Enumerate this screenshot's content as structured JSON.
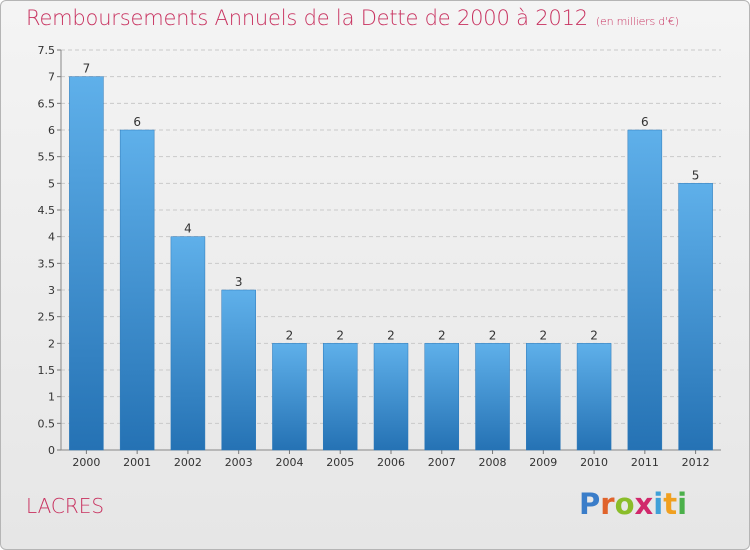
{
  "title": "Remboursements Annuels de la Dette de 2000 à 2012",
  "subtitle": "(en milliers d'€)",
  "commune": "LACRES",
  "logo": {
    "text": "Proxiti",
    "letter_colors": [
      "#3a7dc9",
      "#e0632b",
      "#8abd2a",
      "#d1286b",
      "#3fa0d8",
      "#f0a020",
      "#4bb04a"
    ]
  },
  "colors": {
    "title": "#c8315f",
    "bar_top": "#5fb0ea",
    "bar_bottom": "#2572b4",
    "grid": "#c9c9c9",
    "axis_text": "#333333"
  },
  "chart_data": {
    "type": "bar",
    "title": "Remboursements Annuels de la Dette de 2000 à 2012",
    "subtitle": "(en milliers d'€)",
    "categories": [
      "2000",
      "2001",
      "2002",
      "2003",
      "2004",
      "2005",
      "2006",
      "2007",
      "2008",
      "2009",
      "2010",
      "2011",
      "2012"
    ],
    "values": [
      7,
      6,
      4,
      3,
      2,
      2,
      2,
      2,
      2,
      2,
      2,
      6,
      5
    ],
    "data_labels": [
      "7",
      "6",
      "4",
      "3",
      "2",
      "2",
      "2",
      "2",
      "2",
      "2",
      "2",
      "6",
      "5"
    ],
    "ylim": [
      0,
      7.5
    ],
    "yticks": [
      "0",
      "0.5",
      "1",
      "1.5",
      "2",
      "2.5",
      "3",
      "3.5",
      "4",
      "4.5",
      "5",
      "5.5",
      "6",
      "6.5",
      "7",
      "7.5"
    ],
    "grid": true,
    "legend": "none"
  }
}
